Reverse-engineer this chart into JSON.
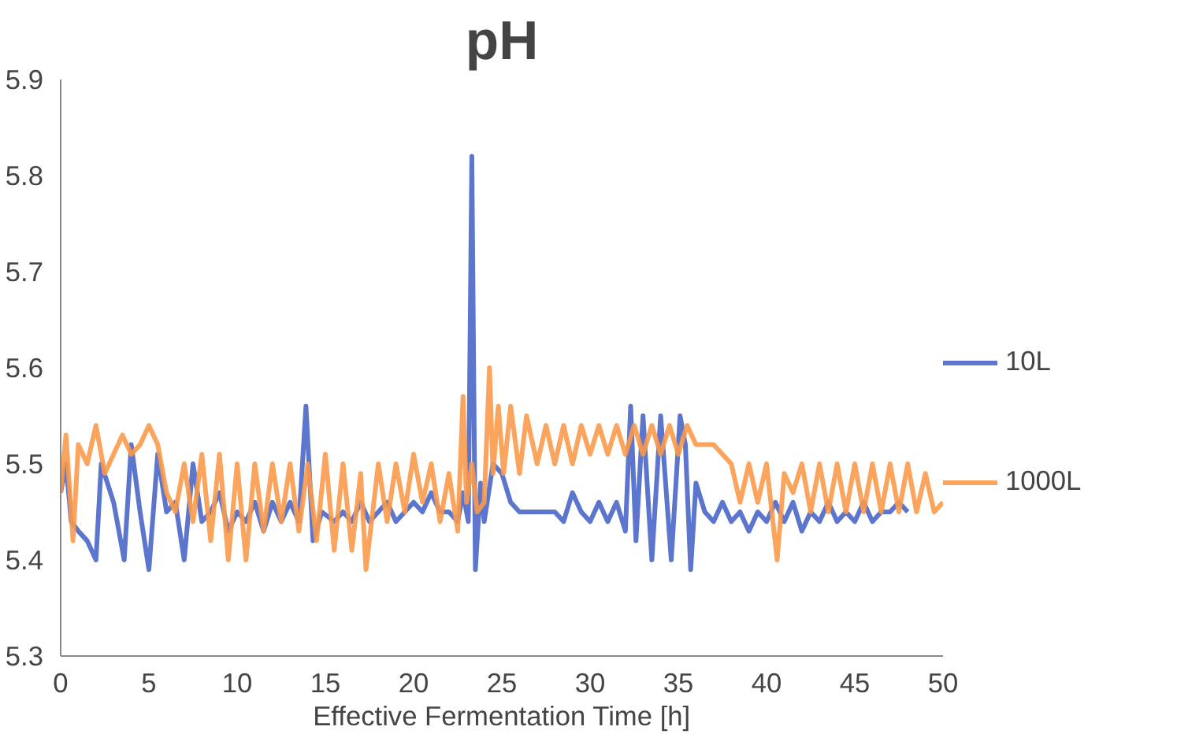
{
  "chart_data": {
    "type": "line",
    "title": "pH",
    "xlabel": "Effective Fermentation Time [h]",
    "xlim": [
      0,
      50
    ],
    "xticks": [
      0,
      5,
      10,
      15,
      20,
      25,
      30,
      35,
      40,
      45,
      50
    ],
    "ylim": [
      5.3,
      5.9
    ],
    "yticks": [
      5.3,
      5.4,
      5.5,
      5.6,
      5.7,
      5.8,
      5.9
    ],
    "grid": false,
    "legend": "right",
    "marker": "none",
    "line_style": "solid",
    "series": [
      {
        "name": "10L",
        "color": "#4a66c8",
        "x": [
          0,
          0.3,
          0.6,
          1,
          1.5,
          2,
          2.3,
          3,
          3.6,
          4,
          4.5,
          5,
          5.5,
          6,
          6.5,
          7,
          7.5,
          8,
          8.5,
          9,
          9.5,
          10,
          10.5,
          11,
          11.5,
          12,
          12.5,
          13,
          13.5,
          13.9,
          14.3,
          14.8,
          15.5,
          16,
          16.5,
          17,
          17.5,
          18,
          18.5,
          19,
          19.5,
          20,
          20.5,
          21,
          21.5,
          22,
          22.5,
          22.8,
          23.1,
          23.3,
          23.5,
          23.8,
          24,
          24.5,
          25,
          25.5,
          26,
          26.5,
          27,
          28,
          28.5,
          29,
          29.5,
          30,
          30.5,
          31,
          31.5,
          32,
          32.3,
          32.6,
          33,
          33.5,
          34,
          34.6,
          35.1,
          35.4,
          35.7,
          36,
          36.5,
          37,
          37.5,
          38,
          38.5,
          39,
          39.5,
          40,
          40.5,
          41,
          41.5,
          42,
          42.5,
          43,
          43.5,
          44,
          44.5,
          45,
          45.5,
          46,
          46.5,
          47,
          47.5,
          48
        ],
        "values": [
          5.47,
          5.5,
          5.44,
          5.43,
          5.42,
          5.4,
          5.5,
          5.46,
          5.4,
          5.52,
          5.45,
          5.39,
          5.51,
          5.45,
          5.46,
          5.4,
          5.5,
          5.44,
          5.45,
          5.47,
          5.43,
          5.45,
          5.44,
          5.46,
          5.43,
          5.46,
          5.44,
          5.46,
          5.44,
          5.56,
          5.42,
          5.45,
          5.44,
          5.45,
          5.44,
          5.46,
          5.44,
          5.45,
          5.46,
          5.44,
          5.45,
          5.46,
          5.45,
          5.47,
          5.45,
          5.45,
          5.44,
          5.47,
          5.44,
          5.82,
          5.39,
          5.48,
          5.44,
          5.5,
          5.49,
          5.46,
          5.45,
          5.45,
          5.45,
          5.45,
          5.44,
          5.47,
          5.45,
          5.44,
          5.46,
          5.44,
          5.46,
          5.43,
          5.56,
          5.42,
          5.55,
          5.4,
          5.55,
          5.4,
          5.55,
          5.52,
          5.39,
          5.48,
          5.45,
          5.44,
          5.46,
          5.44,
          5.45,
          5.43,
          5.45,
          5.44,
          5.46,
          5.44,
          5.46,
          5.43,
          5.45,
          5.44,
          5.46,
          5.44,
          5.45,
          5.44,
          5.46,
          5.44,
          5.45,
          5.45,
          5.46,
          5.45
        ]
      },
      {
        "name": "1000L",
        "color": "#f99a4b",
        "x": [
          0,
          0.3,
          0.7,
          1,
          1.5,
          2,
          2.5,
          3,
          3.5,
          4,
          4.5,
          5,
          5.5,
          6,
          6.5,
          7,
          7.5,
          8,
          8.5,
          9,
          9.5,
          10,
          10.5,
          11,
          11.5,
          12,
          12.5,
          13,
          13.5,
          14,
          14.5,
          15,
          15.5,
          16,
          16.5,
          17,
          17.3,
          18,
          18.5,
          19,
          19.5,
          20,
          20.5,
          21,
          21.5,
          22,
          22.5,
          22.8,
          23,
          23.3,
          23.6,
          24,
          24.3,
          24.5,
          24.8,
          25.1,
          25.5,
          26,
          26.4,
          27,
          27.5,
          28,
          28.5,
          29,
          29.5,
          30,
          30.5,
          31,
          31.5,
          32,
          32.5,
          33,
          33.5,
          34,
          34.5,
          35,
          35.5,
          36,
          37,
          38,
          38.5,
          39,
          39.5,
          40,
          40.6,
          41,
          41.5,
          42,
          42.5,
          43,
          43.5,
          44,
          44.5,
          45,
          45.5,
          46,
          46.5,
          47,
          47.5,
          48,
          48.5,
          49,
          49.5,
          50
        ],
        "values": [
          5.47,
          5.53,
          5.42,
          5.52,
          5.5,
          5.54,
          5.49,
          5.51,
          5.53,
          5.51,
          5.52,
          5.54,
          5.52,
          5.47,
          5.45,
          5.5,
          5.44,
          5.51,
          5.42,
          5.51,
          5.4,
          5.5,
          5.4,
          5.5,
          5.43,
          5.5,
          5.44,
          5.5,
          5.43,
          5.5,
          5.42,
          5.51,
          5.41,
          5.5,
          5.41,
          5.49,
          5.39,
          5.5,
          5.44,
          5.5,
          5.45,
          5.51,
          5.46,
          5.5,
          5.44,
          5.49,
          5.43,
          5.57,
          5.46,
          5.5,
          5.45,
          5.46,
          5.6,
          5.49,
          5.56,
          5.49,
          5.56,
          5.49,
          5.55,
          5.5,
          5.54,
          5.5,
          5.54,
          5.5,
          5.54,
          5.51,
          5.54,
          5.51,
          5.54,
          5.51,
          5.54,
          5.51,
          5.54,
          5.51,
          5.54,
          5.51,
          5.54,
          5.52,
          5.52,
          5.5,
          5.46,
          5.5,
          5.46,
          5.5,
          5.4,
          5.49,
          5.47,
          5.5,
          5.45,
          5.5,
          5.45,
          5.5,
          5.45,
          5.5,
          5.45,
          5.5,
          5.45,
          5.5,
          5.45,
          5.5,
          5.45,
          5.49,
          5.45,
          5.46
        ]
      }
    ]
  }
}
